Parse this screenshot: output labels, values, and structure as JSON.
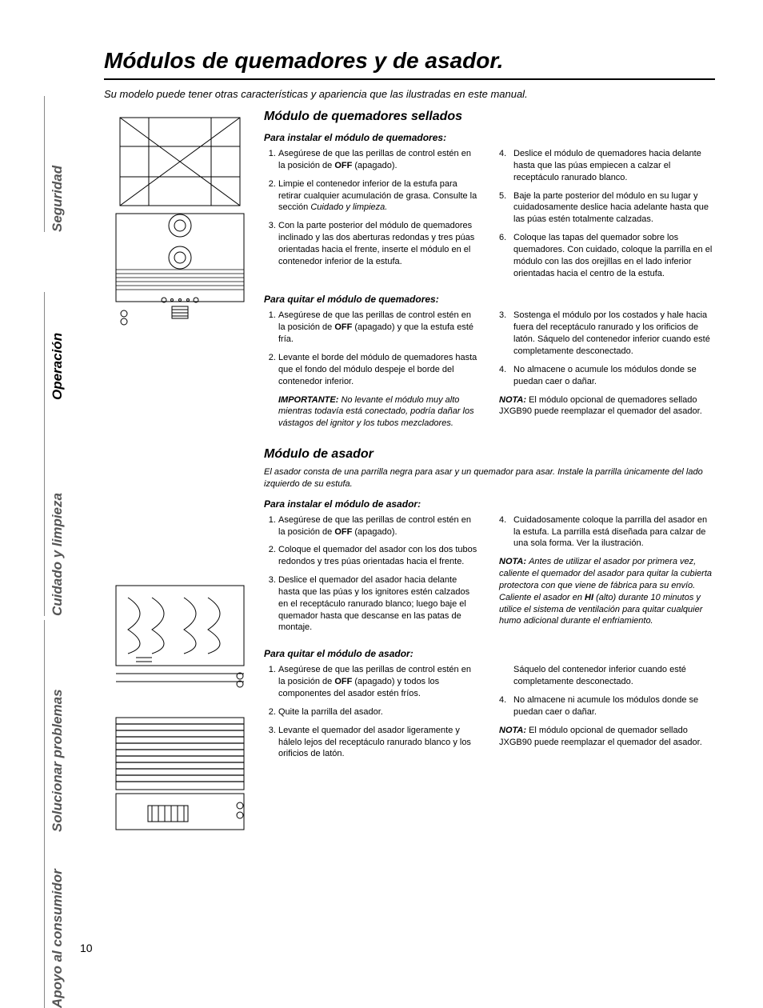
{
  "page_number": "10",
  "colors": {
    "text": "#000000",
    "muted": "#555555",
    "rule": "#000000",
    "tab_rule": "#888888",
    "bg": "#ffffff"
  },
  "typography": {
    "body_size_pt": 11,
    "title_size_pt": 28,
    "section_title_pt": 16,
    "sub_heading_pt": 12,
    "side_tab_pt": 17
  },
  "side_tabs": {
    "seguridad": "Seguridad",
    "operacion": "Operación",
    "cuidado": "Cuidado y limpieza",
    "solucionar": "Solucionar problemas",
    "apoyo": "Apoyo al consumidor"
  },
  "title": "Módulos de quemadores y de asador.",
  "subtitle": "Su modelo puede tener otras características y apariencia que las ilustradas en este manual.",
  "sec1": {
    "heading": "Módulo de quemadores sellados",
    "install_h": "Para instalar el módulo de quemadores:",
    "install_left": [
      "Asegúrese de que las perillas de control estén en la posición de <b>OFF</b> (apagado).",
      "Limpie el contenedor inferior de la estufa para retirar cualquier acumulación de grasa. Consulte la sección <i>Cuidado y limpieza.</i>",
      "Con la parte posterior del módulo de quemadores inclinado y las dos aberturas redondas y tres púas orientadas hacia el frente, inserte el módulo en el contenedor inferior de la estufa."
    ],
    "install_right": [
      "Deslice el módulo de quemadores hacia delante hasta que las púas empiecen a calzar el receptáculo ranurado blanco.",
      "Baje la parte posterior del módulo en su lugar y cuidadosamente deslice hacia adelante hasta que las púas estén totalmente calzadas.",
      "Coloque las tapas del quemador sobre los quemadores. Con cuidado, coloque la parrilla en el módulo con las dos orejillas en el lado inferior orientadas hacia el centro de la estufa."
    ],
    "remove_h": "Para quitar el módulo de quemadores:",
    "remove_left": [
      "Asegúrese de que las perillas de control estén en la posición de <b>OFF</b> (apagado) y que la estufa esté fría.",
      "Levante el borde del módulo de quemadores hasta que el fondo del módulo despeje el borde del contenedor inferior."
    ],
    "remove_left_important": "<b><i>IMPORTANTE:</i></b> <i>No levante el módulo muy alto mientras todavía está conectado, podría dañar los vástagos del ignitor y los tubos mezcladores.</i>",
    "remove_right": [
      "Sostenga el módulo por los costados y hale hacia fuera del receptáculo ranurado y los orificios de latón. Sáquelo del contenedor inferior cuando esté completamente desconectado.",
      "No almacene o acumule los módulos donde se puedan caer o dañar."
    ],
    "remove_right_note": "<b><i>NOTA:</i></b> El módulo opcional de quemadores sellado JXGB90 puede reemplazar el quemador del asador."
  },
  "sec2": {
    "heading": "Módulo de asador",
    "intro": "El asador consta de una parrilla negra para asar y un quemador para asar. Instale la parrilla únicamente del lado izquierdo de su estufa.",
    "install_h": "Para instalar el módulo de asador:",
    "install_left": [
      "Asegúrese de que las perillas de control estén en la posición de <b>OFF</b> (apagado).",
      "Coloque el quemador del asador con los dos tubos redondos y tres púas orientadas hacia el frente.",
      "Deslice el quemador del asador hacia delante hasta que las púas y los ignitores estén calzados en el receptáculo ranurado blanco; luego baje el quemador hasta que descanse en las patas de montaje."
    ],
    "install_right_first": "Cuidadosamente coloque la parrilla del asador en la estufa. La parrilla está diseñada para calzar de una sola forma. Ver la ilustración.",
    "install_right_note": "<b><i>NOTA:</i></b> <i>Antes de utilizar el asador por primera vez, caliente el quemador del asador para quitar la cubierta protectora con que viene de fábrica para su envío. Caliente el asador en <b>HI</b> (alto) durante 10 minutos y utilice el sistema de ventilación para quitar cualquier humo adicional durante el enfriamiento.</i>",
    "remove_h": "Para quitar el módulo de asador:",
    "remove_left": [
      "Asegúrese de que las perillas de control estén en la posición de <b>OFF</b> (apagado) y todos los componentes del asador estén fríos.",
      "Quite la parrilla del asador.",
      "Levante el quemador del asador ligeramente y hálelo lejos del receptáculo ranurado blanco y los orificios de latón."
    ],
    "remove_right_cont": "Sáquelo del contenedor inferior cuando esté completamente desconectado.",
    "remove_right": [
      "No almacene ni acumule los módulos donde se puedan caer o dañar."
    ],
    "remove_right_note": "<b><i>NOTA:</i></b> El módulo opcional de quemador sellado JXGB90 puede reemplazar el quemador del asador."
  }
}
